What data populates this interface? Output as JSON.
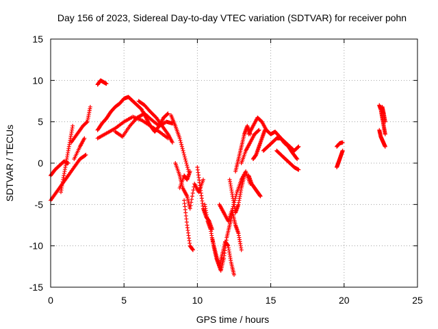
{
  "chart_data": {
    "type": "scatter",
    "title": "Day 156 of 2023, Sidereal Day-to-day VTEC variation (SDTVAR) for receiver pohn",
    "xlabel": "GPS time / hours",
    "ylabel": "SDTVAR / TECUs",
    "xlim": [
      0,
      25
    ],
    "ylim": [
      -15,
      15
    ],
    "xticks": [
      "0",
      "5",
      "10",
      "15",
      "20",
      "25"
    ],
    "yticks": [
      "15",
      "10",
      "5",
      "0",
      "-5",
      "-10",
      "-15"
    ],
    "grid": true,
    "marker": "plus",
    "color": "#ff0000",
    "tracks": [
      {
        "x": [
          0.0,
          0.3,
          0.6,
          0.9,
          1.2
        ],
        "y": [
          -1.5,
          -0.8,
          -0.3,
          0.2,
          0.0
        ]
      },
      {
        "x": [
          0.0,
          0.4,
          0.8,
          1.2,
          1.6,
          2.0,
          2.4
        ],
        "y": [
          -4.5,
          -3.5,
          -2.5,
          -1.5,
          -0.5,
          0.5,
          1.0
        ]
      },
      {
        "x": [
          0.7,
          0.9,
          1.1,
          1.3,
          1.5
        ],
        "y": [
          -3.5,
          -1.5,
          0.5,
          2.5,
          4.5
        ]
      },
      {
        "x": [
          1.4,
          1.8,
          2.2,
          2.5,
          2.7
        ],
        "y": [
          2.5,
          3.5,
          4.5,
          5.0,
          6.8
        ]
      },
      {
        "x": [
          1.6,
          2.0,
          2.3
        ],
        "y": [
          0.5,
          2.0,
          3.0
        ]
      },
      {
        "x": [
          3.2,
          3.4,
          3.6,
          3.8
        ],
        "y": [
          9.5,
          10.0,
          9.8,
          9.6
        ]
      },
      {
        "x": [
          3.2,
          3.5,
          3.8,
          4.1,
          4.4,
          4.7,
          5.0,
          5.3,
          5.6,
          5.9,
          6.2,
          6.5,
          6.8,
          7.1,
          7.4,
          7.7,
          8.0
        ],
        "y": [
          4.0,
          4.8,
          5.4,
          6.2,
          6.8,
          7.2,
          7.8,
          8.0,
          7.5,
          7.0,
          6.5,
          5.5,
          4.5,
          3.8,
          4.5,
          5.5,
          6.0
        ]
      },
      {
        "x": [
          3.2,
          3.8,
          4.4,
          5.0,
          5.6,
          6.2,
          6.8,
          7.4,
          8.0
        ],
        "y": [
          3.0,
          3.6,
          4.2,
          5.0,
          5.6,
          5.2,
          4.5,
          3.8,
          3.0
        ]
      },
      {
        "x": [
          4.4,
          4.9,
          5.4,
          5.9,
          6.4,
          6.9,
          7.4,
          7.9,
          8.3
        ],
        "y": [
          3.8,
          3.2,
          4.5,
          5.5,
          6.0,
          5.2,
          4.5,
          5.0,
          4.8
        ]
      },
      {
        "x": [
          6.0,
          6.4,
          6.8,
          7.2,
          7.6,
          8.0,
          8.3
        ],
        "y": [
          7.5,
          7.0,
          6.2,
          5.5,
          4.5,
          3.5,
          2.5
        ]
      },
      {
        "x": [
          8.2,
          8.5,
          8.8,
          9.1,
          9.4
        ],
        "y": [
          5.8,
          4.5,
          3.0,
          1.0,
          -1.0
        ]
      },
      {
        "x": [
          8.5,
          8.8,
          9.0,
          9.3,
          9.5,
          9.8,
          10.1,
          10.4
        ],
        "y": [
          0.0,
          -1.5,
          -3.0,
          -4.0,
          -5.5,
          -2.5,
          -3.5,
          -2.0
        ]
      },
      {
        "x": [
          8.8,
          9.1,
          9.3,
          9.5
        ],
        "y": [
          -3.0,
          -1.5,
          -2.0,
          -1.0
        ]
      },
      {
        "x": [
          9.1,
          9.3,
          9.5,
          9.7
        ],
        "y": [
          -4.5,
          -7.5,
          -10.0,
          -10.5
        ]
      },
      {
        "x": [
          10.0,
          10.2,
          10.4,
          10.6,
          10.8,
          11.0
        ],
        "y": [
          -0.5,
          -3.0,
          -5.5,
          -6.5,
          -7.0,
          -8.0
        ]
      },
      {
        "x": [
          10.5,
          10.7,
          10.9,
          11.1,
          11.3,
          11.5,
          11.7,
          11.9,
          12.1,
          12.3,
          12.5
        ],
        "y": [
          -5.0,
          -7.0,
          -8.0,
          -10.0,
          -11.5,
          -12.5,
          -11.0,
          -9.5,
          -10.0,
          -12.0,
          -13.5
        ]
      },
      {
        "x": [
          11.0,
          11.2,
          11.4,
          11.6,
          11.8,
          12.0,
          12.2,
          12.4,
          12.6,
          12.8,
          13.0
        ],
        "y": [
          -9.0,
          -10.5,
          -12.0,
          -13.0,
          -11.5,
          -9.0,
          -7.5,
          -6.0,
          -7.5,
          -8.5,
          -10.5
        ]
      },
      {
        "x": [
          11.5,
          11.8,
          12.1,
          12.4,
          12.7,
          13.0,
          13.3,
          13.6
        ],
        "y": [
          -5.0,
          -6.0,
          -7.0,
          -5.5,
          -3.5,
          -2.0,
          -1.0,
          -2.5
        ]
      },
      {
        "x": [
          12.2,
          12.4,
          12.6,
          12.8,
          13.0,
          13.2
        ],
        "y": [
          -2.0,
          -4.0,
          -6.0,
          -5.0,
          -3.0,
          -1.5
        ]
      },
      {
        "x": [
          12.6,
          12.8,
          13.0,
          13.2,
          13.4,
          13.6
        ],
        "y": [
          -1.0,
          0.5,
          2.0,
          3.5,
          4.5,
          3.5
        ]
      },
      {
        "x": [
          13.0,
          13.3,
          13.6,
          13.9,
          14.2
        ],
        "y": [
          0.0,
          1.5,
          2.5,
          3.5,
          4.0
        ]
      },
      {
        "x": [
          13.5,
          13.7,
          13.9,
          14.1,
          14.3
        ],
        "y": [
          -1.5,
          -2.5,
          -3.0,
          -3.5,
          -4.0
        ]
      },
      {
        "x": [
          13.8,
          14.0,
          14.2,
          14.4,
          14.6
        ],
        "y": [
          0.5,
          1.0,
          2.0,
          3.0,
          4.0
        ]
      },
      {
        "x": [
          13.5,
          13.8,
          14.1,
          14.4,
          14.7,
          15.0,
          15.3,
          15.6,
          15.9,
          16.2,
          16.5,
          16.8
        ],
        "y": [
          3.5,
          4.5,
          5.5,
          5.0,
          4.0,
          3.5,
          3.8,
          3.2,
          2.5,
          2.0,
          1.2,
          0.5
        ]
      },
      {
        "x": [
          14.5,
          14.8,
          15.1,
          15.4,
          15.7,
          16.0,
          16.3,
          16.6,
          16.9
        ],
        "y": [
          1.5,
          2.0,
          2.5,
          3.0,
          3.0,
          2.5,
          2.0,
          1.5,
          2.0
        ]
      },
      {
        "x": [
          15.4,
          15.7,
          16.0,
          16.3,
          16.6,
          16.9
        ],
        "y": [
          1.5,
          1.0,
          0.5,
          0.0,
          -0.5,
          -0.8
        ]
      },
      {
        "x": [
          19.5,
          19.7,
          19.9
        ],
        "y": [
          2.0,
          2.4,
          2.5
        ]
      },
      {
        "x": [
          19.5,
          19.6,
          19.7,
          19.8,
          19.9
        ],
        "y": [
          -0.5,
          0.0,
          0.5,
          1.0,
          1.5
        ]
      },
      {
        "x": [
          22.4,
          22.5,
          22.6,
          22.7,
          22.8
        ],
        "y": [
          7.0,
          6.5,
          5.5,
          4.5,
          3.5
        ]
      },
      {
        "x": [
          22.4,
          22.5,
          22.6,
          22.7,
          22.8
        ],
        "y": [
          4.0,
          3.2,
          2.8,
          2.4,
          2.0
        ]
      },
      {
        "x": [
          22.6,
          22.7,
          22.8
        ],
        "y": [
          6.8,
          6.0,
          5.0
        ]
      }
    ]
  }
}
